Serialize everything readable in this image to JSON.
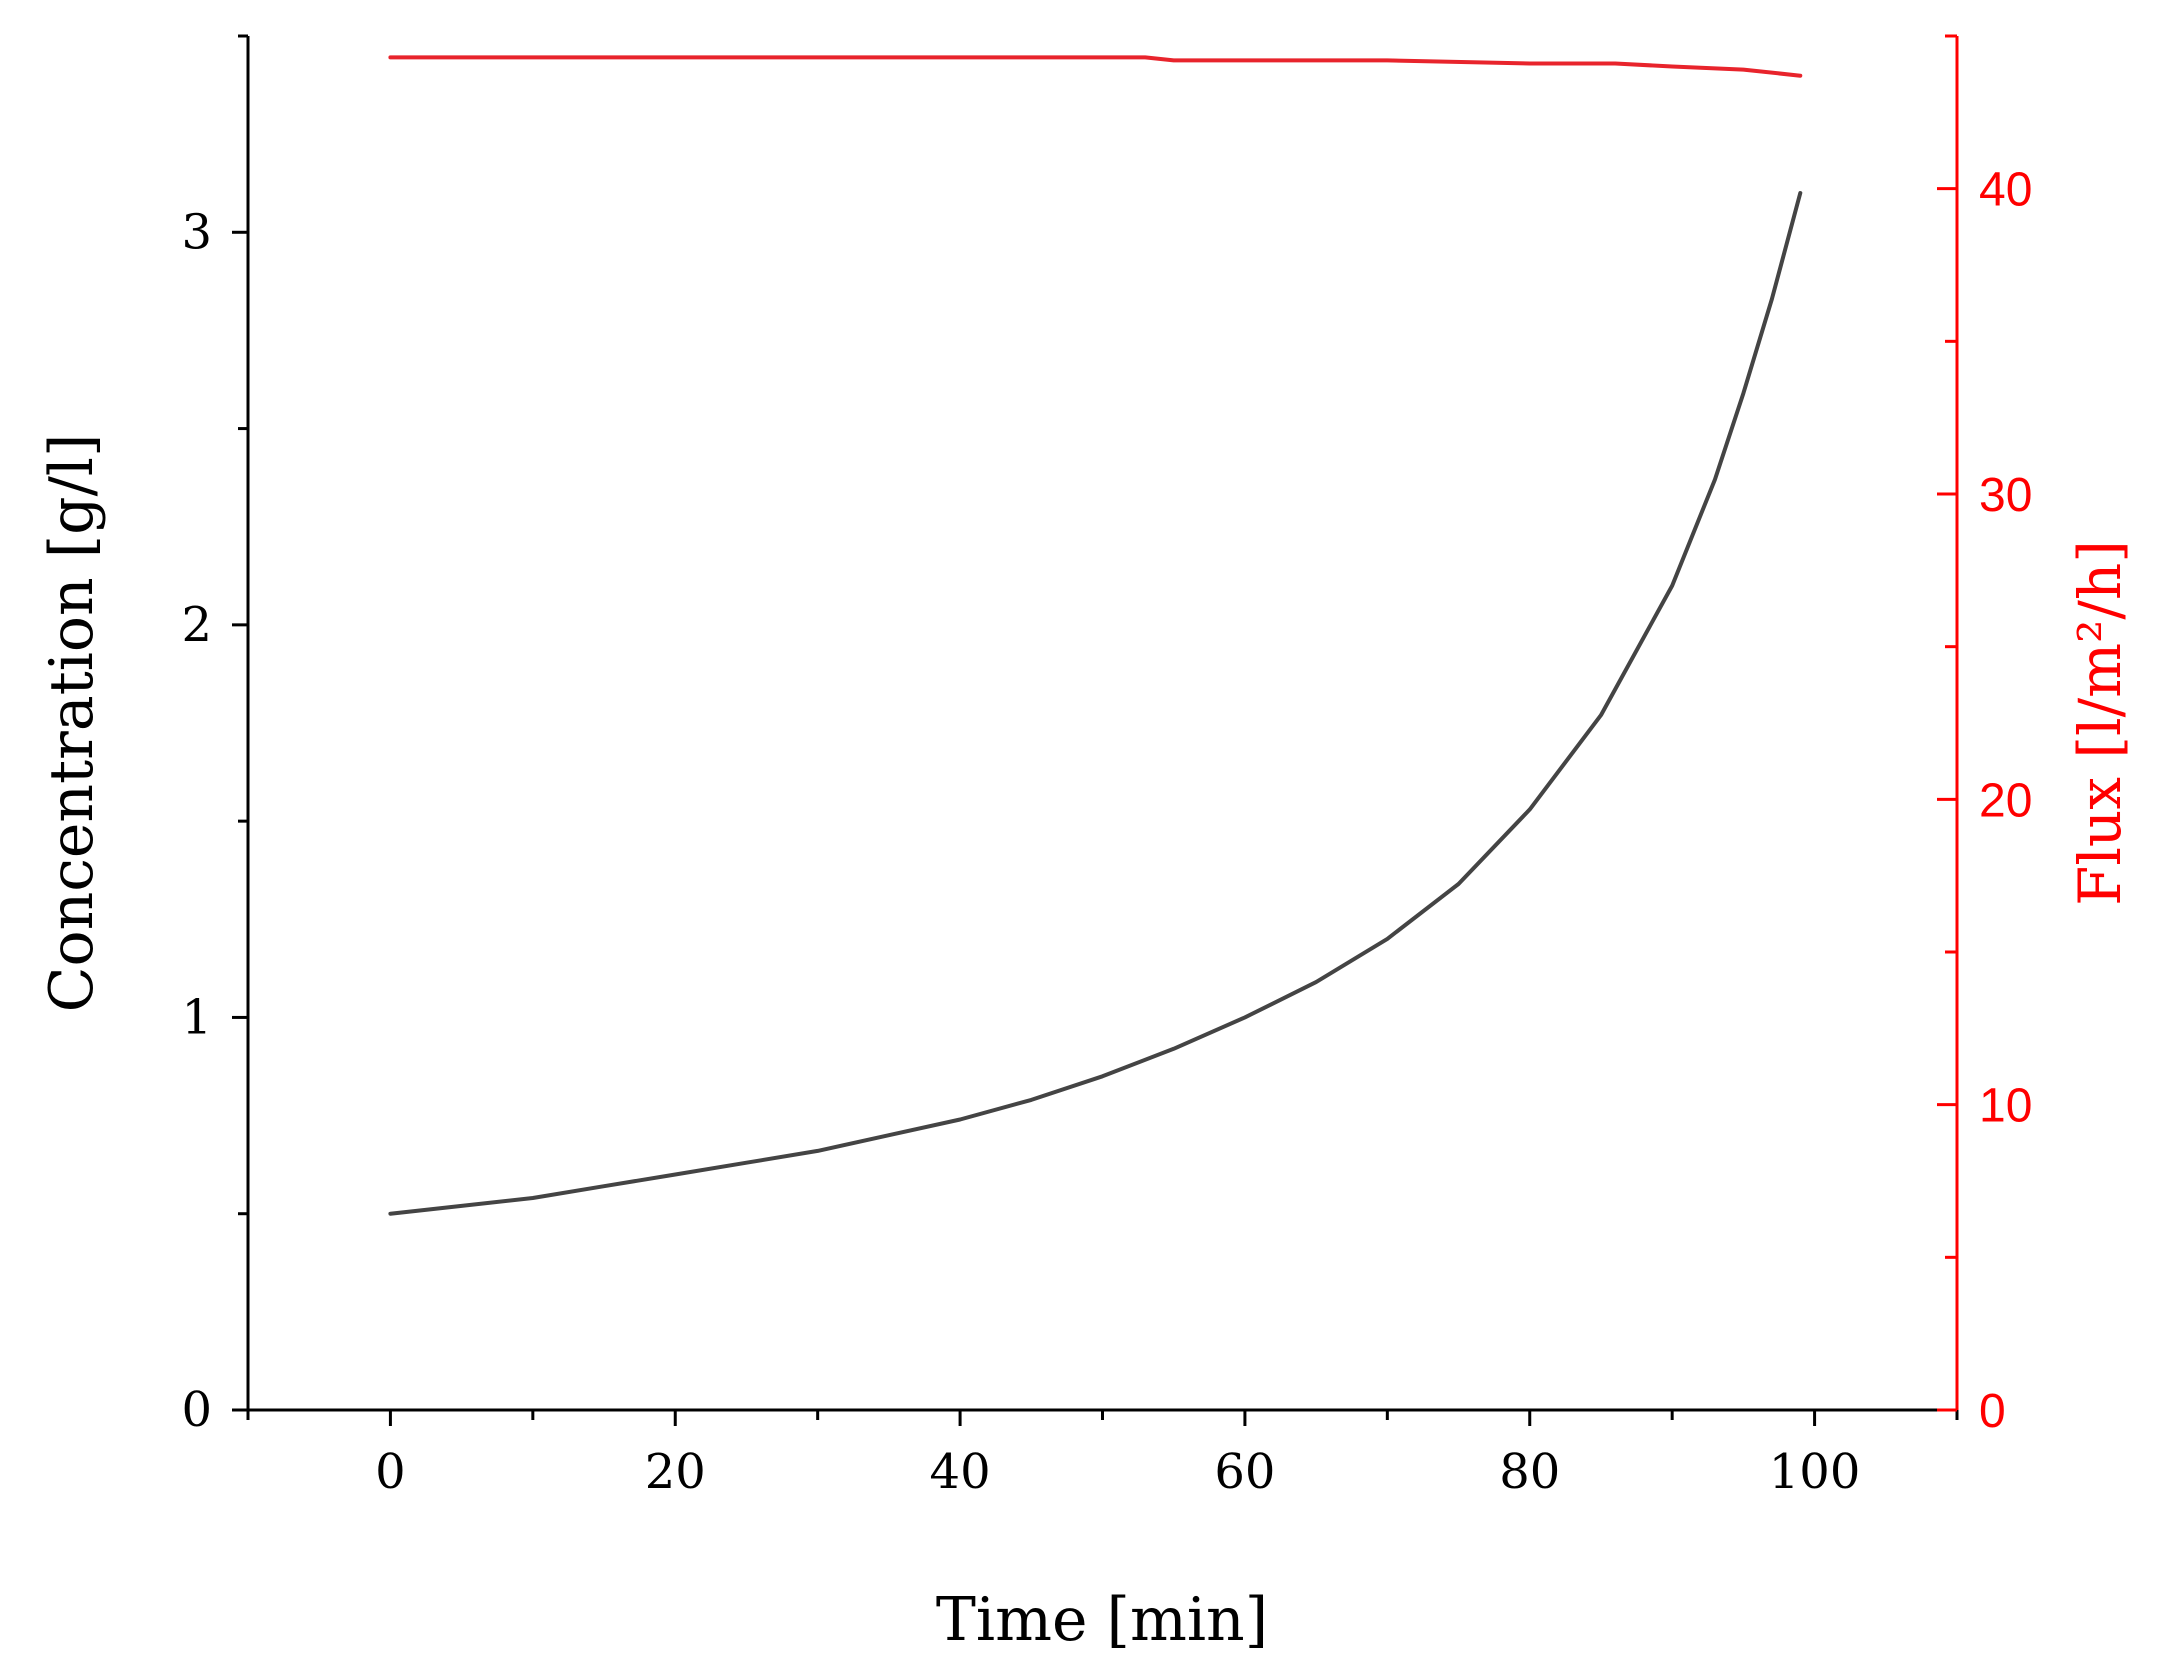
{
  "chart_data": {
    "type": "line",
    "xlabel": "Time [min]",
    "ylabel": "Concentration [g/l]",
    "y2label": "Flux [l/m²/h]",
    "xlim": [
      -10,
      110
    ],
    "ylim": [
      0,
      3.5
    ],
    "y2lim": [
      0,
      45
    ],
    "x_ticks": [
      0,
      20,
      40,
      60,
      80,
      100
    ],
    "y_ticks": [
      0,
      1,
      2,
      3
    ],
    "y2_ticks": [
      0,
      10,
      20,
      30,
      40
    ],
    "grid": false,
    "legend": "none",
    "colors": {
      "concentration": "#444444",
      "flux": "#e8242c",
      "right_axis": "#ff0000"
    },
    "series": [
      {
        "axis": "left",
        "x": [
          0,
          5,
          10,
          15,
          20,
          25,
          30,
          35,
          40,
          45,
          50,
          55,
          60,
          65,
          70,
          75,
          80,
          85,
          90,
          93,
          95,
          97,
          99
        ],
        "values": [
          0.5,
          0.52,
          0.54,
          0.57,
          0.6,
          0.63,
          0.66,
          0.7,
          0.74,
          0.79,
          0.85,
          0.92,
          1.0,
          1.09,
          1.2,
          1.34,
          1.53,
          1.77,
          2.1,
          2.37,
          2.59,
          2.83,
          3.1
        ]
      },
      {
        "axis": "right",
        "x": [
          0,
          20,
          40,
          53,
          55,
          70,
          80,
          86,
          90,
          95,
          99
        ],
        "values": [
          44.3,
          44.3,
          44.3,
          44.3,
          44.2,
          44.2,
          44.1,
          44.1,
          44.0,
          43.9,
          43.7
        ]
      }
    ]
  }
}
